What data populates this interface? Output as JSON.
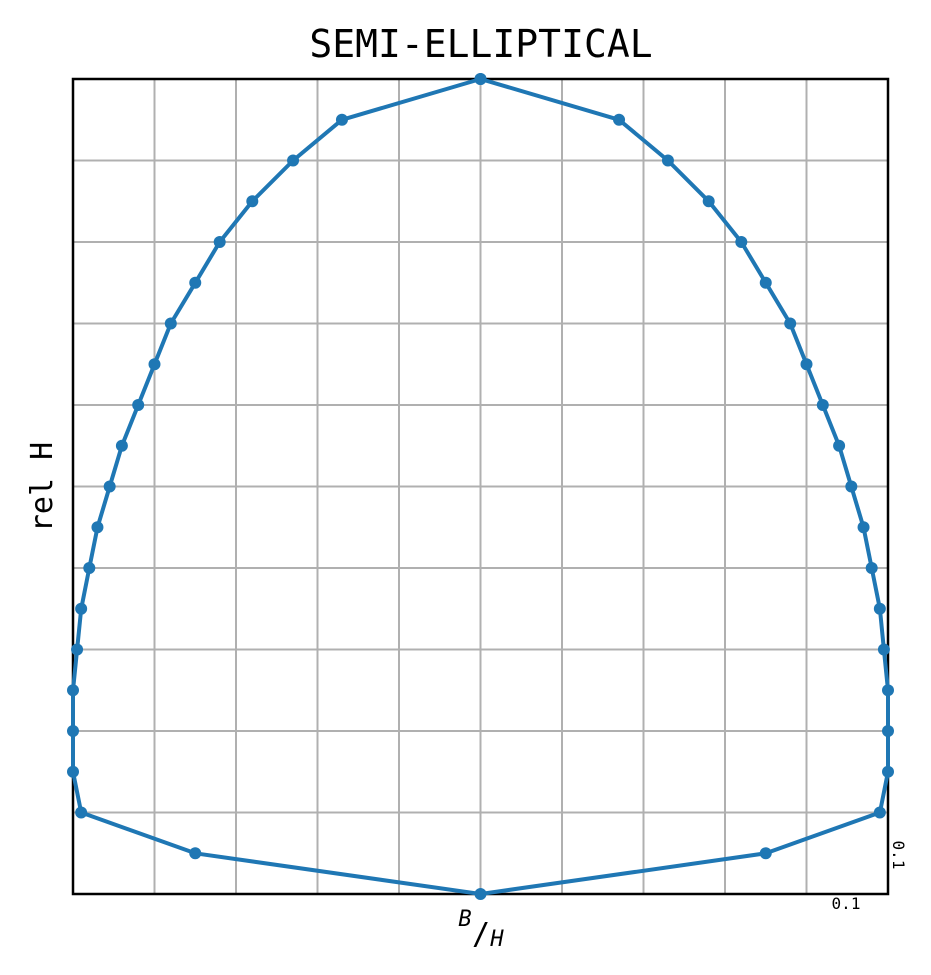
{
  "chart_data": {
    "type": "line",
    "title": "SEMI-ELLIPTICAL",
    "xlabel": {
      "sup": "B",
      "main": "/",
      "sub": "H"
    },
    "ylabel": "rel H",
    "x_scale_label": "0.1",
    "y_scale_label": "0.1",
    "xlim": [
      -0.5,
      0.5
    ],
    "ylim": [
      0.0,
      1.0
    ],
    "grid": true,
    "grid_step": 0.1,
    "color": "#1f77b4",
    "series": [
      {
        "x": [
          0.0,
          0.17,
          0.23,
          0.28,
          0.32,
          0.35,
          0.38,
          0.4,
          0.42,
          0.44,
          0.455,
          0.47,
          0.48,
          0.49,
          0.495,
          0.5,
          0.5,
          0.5,
          0.49,
          0.35,
          0.0,
          -0.35,
          -0.49,
          -0.5,
          -0.5,
          -0.5,
          -0.495,
          -0.49,
          -0.48,
          -0.47,
          -0.455,
          -0.44,
          -0.42,
          -0.4,
          -0.38,
          -0.35,
          -0.32,
          -0.28,
          -0.23,
          -0.17,
          0.0
        ],
        "y": [
          1.0,
          0.95,
          0.9,
          0.85,
          0.8,
          0.75,
          0.7,
          0.65,
          0.6,
          0.55,
          0.5,
          0.45,
          0.4,
          0.35,
          0.3,
          0.25,
          0.2,
          0.15,
          0.1,
          0.05,
          0.0,
          0.05,
          0.1,
          0.15,
          0.2,
          0.25,
          0.3,
          0.35,
          0.4,
          0.45,
          0.5,
          0.55,
          0.6,
          0.65,
          0.7,
          0.75,
          0.8,
          0.85,
          0.9,
          0.95,
          1.0
        ]
      }
    ]
  }
}
